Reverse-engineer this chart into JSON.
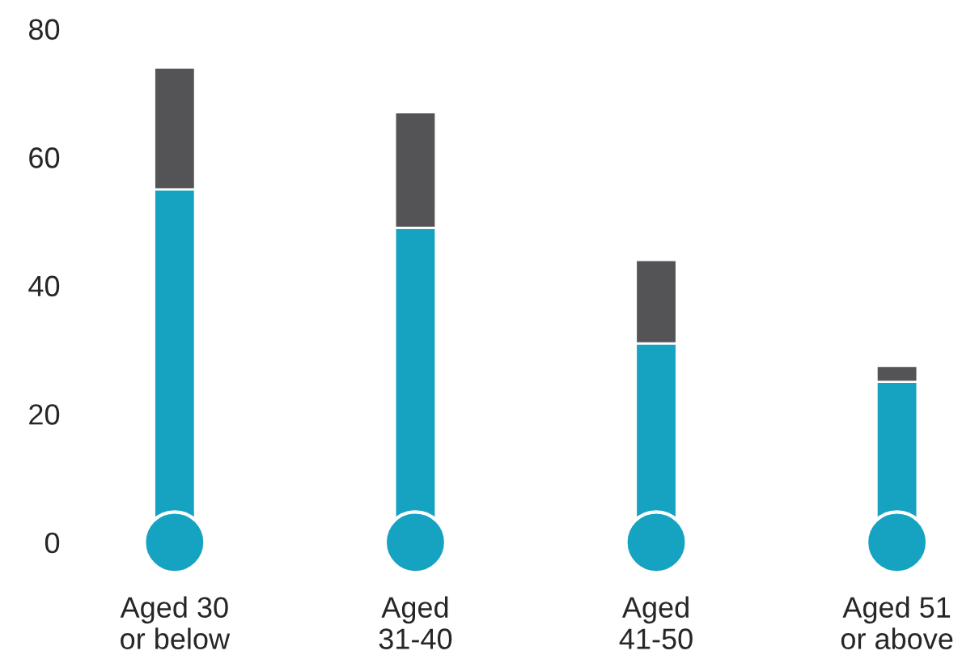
{
  "chart_data": {
    "type": "bar",
    "stacked": true,
    "categories": [
      "Aged 30\nor below",
      "Aged\n31-40",
      "Aged\n41-50",
      "Aged 51\nor above"
    ],
    "series": [
      {
        "color": "#16a3c2",
        "values": [
          55,
          49,
          31,
          25
        ]
      },
      {
        "color": "#545456",
        "values": [
          19,
          18,
          13,
          2.5
        ]
      }
    ],
    "ylim": [
      0,
      80
    ],
    "yticks": [
      0,
      20,
      40,
      60,
      80
    ],
    "grid": false
  }
}
